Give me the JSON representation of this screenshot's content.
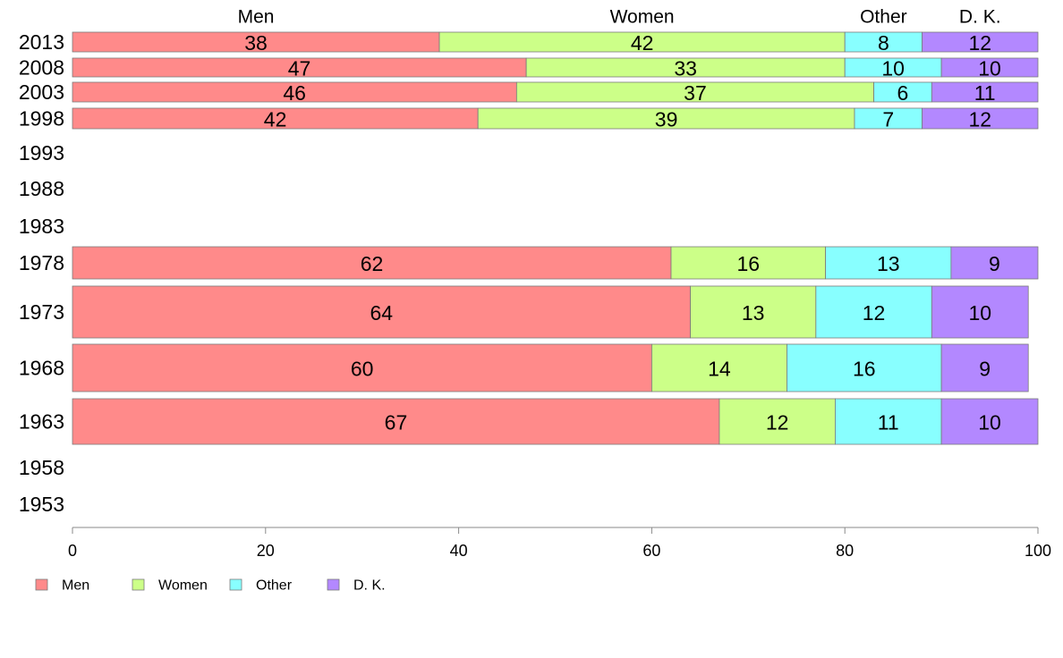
{
  "chart_data": {
    "type": "bar",
    "orientation": "horizontal",
    "stacked": true,
    "categories": [
      "2013",
      "2008",
      "2003",
      "1998",
      "1993",
      "1988",
      "1983",
      "1978",
      "1973",
      "1968",
      "1963",
      "1958",
      "1953"
    ],
    "series": [
      {
        "name": "Men",
        "color": "#ff8a8a",
        "values": [
          38,
          47,
          46,
          42,
          null,
          null,
          null,
          62,
          64,
          60,
          67,
          null,
          null
        ]
      },
      {
        "name": "Women",
        "color": "#ccff88",
        "values": [
          42,
          33,
          37,
          39,
          null,
          null,
          null,
          16,
          13,
          14,
          12,
          null,
          null
        ]
      },
      {
        "name": "Other",
        "color": "#88ffff",
        "values": [
          8,
          10,
          6,
          7,
          null,
          null,
          null,
          13,
          12,
          16,
          11,
          null,
          null
        ]
      },
      {
        "name": "D. K.",
        "color": "#b388ff",
        "values": [
          12,
          10,
          11,
          12,
          null,
          null,
          null,
          9,
          10,
          9,
          10,
          null,
          null
        ]
      }
    ],
    "top_labels": [
      "Men",
      "Women",
      "Other",
      "D. K."
    ],
    "xticks": [
      0,
      20,
      40,
      60,
      80,
      100
    ],
    "xlim": [
      0,
      100
    ],
    "legend_position": "bottom-left",
    "grid": false
  }
}
